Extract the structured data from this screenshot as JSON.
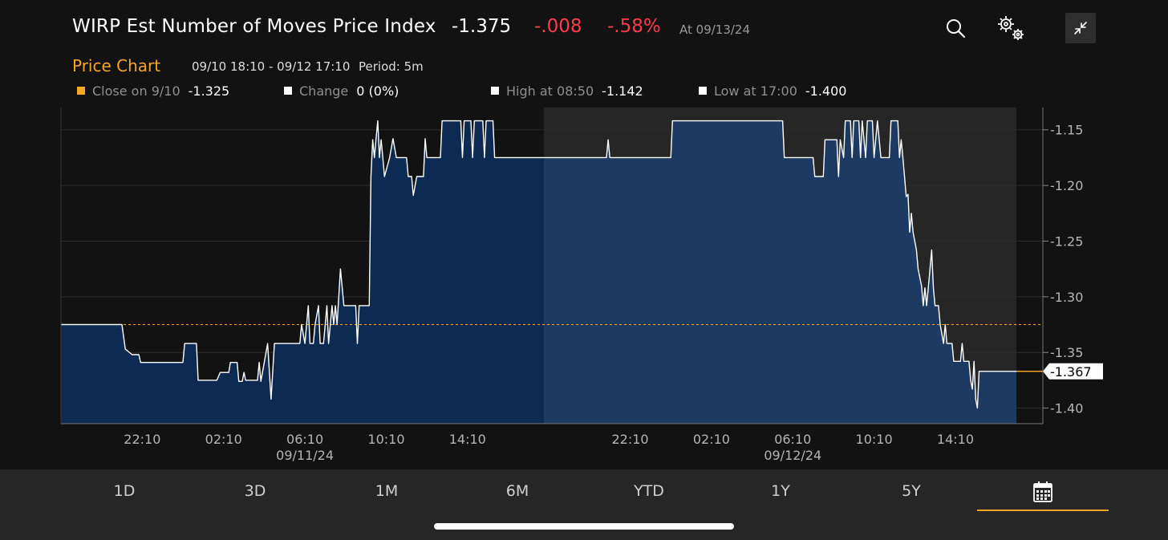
{
  "header": {
    "title": "WIRP Est Number of Moves Price Index",
    "price": "-1.375",
    "change": "-.008",
    "change_pct": "-.58%",
    "as_of": "At 09/13/24",
    "icons": [
      "search-icon",
      "settings-gears-icon",
      "collapse-icon"
    ]
  },
  "subheader": {
    "title": "Price Chart",
    "range": "09/10 18:10 - 09/12 17:10",
    "period": "Period: 5m"
  },
  "legend": [
    {
      "label": "Close on 9/10",
      "value": "-1.325",
      "color": "#f5a623"
    },
    {
      "label": "Change",
      "value": "0 (0%)",
      "color": "#ffffff"
    },
    {
      "label": "High at 08:50",
      "value": "-1.142",
      "color": "#ffffff"
    },
    {
      "label": "Low at 17:00",
      "value": "-1.400",
      "color": "#ffffff"
    }
  ],
  "chart_data": {
    "type": "area",
    "x_unit": "2024-09-10T18:10 .. 2024-09-12T17:10, 5-minute bars",
    "x_ticks": [
      {
        "t": "2024-09-10T22:10",
        "label": "22:10",
        "date": ""
      },
      {
        "t": "2024-09-11T02:10",
        "label": "02:10",
        "date": ""
      },
      {
        "t": "2024-09-11T06:10",
        "label": "06:10",
        "date": "09/11/24"
      },
      {
        "t": "2024-09-11T10:10",
        "label": "10:10",
        "date": ""
      },
      {
        "t": "2024-09-11T14:10",
        "label": "14:10",
        "date": ""
      },
      {
        "t": "2024-09-11T22:10",
        "label": "22:10",
        "date": ""
      },
      {
        "t": "2024-09-12T02:10",
        "label": "02:10",
        "date": ""
      },
      {
        "t": "2024-09-12T06:10",
        "label": "06:10",
        "date": "09/12/24"
      },
      {
        "t": "2024-09-12T10:10",
        "label": "10:10",
        "date": ""
      },
      {
        "t": "2024-09-12T14:10",
        "label": "14:10",
        "date": ""
      }
    ],
    "y_ticks": [
      "-1.15",
      "-1.20",
      "-1.25",
      "-1.30",
      "-1.35",
      "-1.40"
    ],
    "ylim": [
      -1.414,
      -1.13
    ],
    "xlim": [
      "2024-09-10T18:10",
      "2024-09-12T17:10"
    ],
    "grid": true,
    "reference_line": {
      "value": -1.325,
      "color": "#f5a623"
    },
    "last_value": {
      "label": "-1.367",
      "value": -1.367
    },
    "highlight_range": [
      "2024-09-11T17:55",
      "2024-09-12T17:10"
    ],
    "colors": {
      "line": "#ffffff",
      "fill": "#0d2a52",
      "fill_highlight": "#1c3a62",
      "highlight_band": "#262626"
    },
    "series": [
      {
        "points": [
          [
            "2024-09-10T18:10",
            -1.325
          ],
          [
            "2024-09-10T21:10",
            -1.325
          ],
          [
            "2024-09-10T21:20",
            -1.347
          ],
          [
            "2024-09-10T21:40",
            -1.352
          ],
          [
            "2024-09-10T22:00",
            -1.352
          ],
          [
            "2024-09-10T22:05",
            -1.359
          ],
          [
            "2024-09-11T00:10",
            -1.359
          ],
          [
            "2024-09-11T00:15",
            -1.342
          ],
          [
            "2024-09-11T00:50",
            -1.342
          ],
          [
            "2024-09-11T00:55",
            -1.375
          ],
          [
            "2024-09-11T01:50",
            -1.375
          ],
          [
            "2024-09-11T02:00",
            -1.368
          ],
          [
            "2024-09-11T02:25",
            -1.368
          ],
          [
            "2024-09-11T02:30",
            -1.359
          ],
          [
            "2024-09-11T02:50",
            -1.359
          ],
          [
            "2024-09-11T02:55",
            -1.376
          ],
          [
            "2024-09-11T03:05",
            -1.376
          ],
          [
            "2024-09-11T03:10",
            -1.368
          ],
          [
            "2024-09-11T03:15",
            -1.375
          ],
          [
            "2024-09-11T03:50",
            -1.375
          ],
          [
            "2024-09-11T03:55",
            -1.359
          ],
          [
            "2024-09-11T04:00",
            -1.376
          ],
          [
            "2024-09-11T04:10",
            -1.359
          ],
          [
            "2024-09-11T04:20",
            -1.342
          ],
          [
            "2024-09-11T04:25",
            -1.366
          ],
          [
            "2024-09-11T04:30",
            -1.392
          ],
          [
            "2024-09-11T04:40",
            -1.342
          ],
          [
            "2024-09-11T05:55",
            -1.342
          ],
          [
            "2024-09-11T06:00",
            -1.325
          ],
          [
            "2024-09-11T06:10",
            -1.342
          ],
          [
            "2024-09-11T06:20",
            -1.308
          ],
          [
            "2024-09-11T06:25",
            -1.342
          ],
          [
            "2024-09-11T06:35",
            -1.342
          ],
          [
            "2024-09-11T06:40",
            -1.325
          ],
          [
            "2024-09-11T06:50",
            -1.308
          ],
          [
            "2024-09-11T06:55",
            -1.342
          ],
          [
            "2024-09-11T07:05",
            -1.342
          ],
          [
            "2024-09-11T07:10",
            -1.325
          ],
          [
            "2024-09-11T07:15",
            -1.308
          ],
          [
            "2024-09-11T07:20",
            -1.342
          ],
          [
            "2024-09-11T07:30",
            -1.308
          ],
          [
            "2024-09-11T07:35",
            -1.325
          ],
          [
            "2024-09-11T07:40",
            -1.308
          ],
          [
            "2024-09-11T07:45",
            -1.325
          ],
          [
            "2024-09-11T07:55",
            -1.275
          ],
          [
            "2024-09-11T08:05",
            -1.308
          ],
          [
            "2024-09-11T08:40",
            -1.308
          ],
          [
            "2024-09-11T08:45",
            -1.342
          ],
          [
            "2024-09-11T08:50",
            -1.308
          ],
          [
            "2024-09-11T09:20",
            -1.308
          ],
          [
            "2024-09-11T09:25",
            -1.192
          ],
          [
            "2024-09-11T09:30",
            -1.159
          ],
          [
            "2024-09-11T09:35",
            -1.175
          ],
          [
            "2024-09-11T09:40",
            -1.158
          ],
          [
            "2024-09-11T09:45",
            -1.142
          ],
          [
            "2024-09-11T09:50",
            -1.175
          ],
          [
            "2024-09-11T09:55",
            -1.159
          ],
          [
            "2024-09-11T10:00",
            -1.175
          ],
          [
            "2024-09-11T10:05",
            -1.192
          ],
          [
            "2024-09-11T10:20",
            -1.175
          ],
          [
            "2024-09-11T10:30",
            -1.158
          ],
          [
            "2024-09-11T10:40",
            -1.175
          ],
          [
            "2024-09-11T11:10",
            -1.175
          ],
          [
            "2024-09-11T11:15",
            -1.192
          ],
          [
            "2024-09-11T11:25",
            -1.192
          ],
          [
            "2024-09-11T11:30",
            -1.209
          ],
          [
            "2024-09-11T11:40",
            -1.192
          ],
          [
            "2024-09-11T12:00",
            -1.192
          ],
          [
            "2024-09-11T12:05",
            -1.158
          ],
          [
            "2024-09-11T12:10",
            -1.175
          ],
          [
            "2024-09-11T12:50",
            -1.175
          ],
          [
            "2024-09-11T12:55",
            -1.142
          ],
          [
            "2024-09-11T13:50",
            -1.142
          ],
          [
            "2024-09-11T13:55",
            -1.175
          ],
          [
            "2024-09-11T14:00",
            -1.142
          ],
          [
            "2024-09-11T14:20",
            -1.142
          ],
          [
            "2024-09-11T14:25",
            -1.175
          ],
          [
            "2024-09-11T14:30",
            -1.142
          ],
          [
            "2024-09-11T14:55",
            -1.142
          ],
          [
            "2024-09-11T15:00",
            -1.175
          ],
          [
            "2024-09-11T15:05",
            -1.142
          ],
          [
            "2024-09-11T15:25",
            -1.142
          ],
          [
            "2024-09-11T15:30",
            -1.175
          ],
          [
            "2024-09-11T17:55",
            -1.175
          ],
          [
            "2024-09-11T21:00",
            -1.175
          ],
          [
            "2024-09-11T21:05",
            -1.159
          ],
          [
            "2024-09-11T21:10",
            -1.175
          ],
          [
            "2024-09-12T00:10",
            -1.175
          ],
          [
            "2024-09-12T00:15",
            -1.142
          ],
          [
            "2024-09-12T05:40",
            -1.142
          ],
          [
            "2024-09-12T05:45",
            -1.175
          ],
          [
            "2024-09-12T07:10",
            -1.175
          ],
          [
            "2024-09-12T07:15",
            -1.192
          ],
          [
            "2024-09-12T07:40",
            -1.192
          ],
          [
            "2024-09-12T07:45",
            -1.159
          ],
          [
            "2024-09-12T08:20",
            -1.159
          ],
          [
            "2024-09-12T08:25",
            -1.192
          ],
          [
            "2024-09-12T08:30",
            -1.159
          ],
          [
            "2024-09-12T08:40",
            -1.175
          ],
          [
            "2024-09-12T08:45",
            -1.142
          ],
          [
            "2024-09-12T09:00",
            -1.142
          ],
          [
            "2024-09-12T09:05",
            -1.175
          ],
          [
            "2024-09-12T09:10",
            -1.142
          ],
          [
            "2024-09-12T09:25",
            -1.142
          ],
          [
            "2024-09-12T09:30",
            -1.175
          ],
          [
            "2024-09-12T09:35",
            -1.142
          ],
          [
            "2024-09-12T09:45",
            -1.175
          ],
          [
            "2024-09-12T09:50",
            -1.142
          ],
          [
            "2024-09-12T10:05",
            -1.142
          ],
          [
            "2024-09-12T10:10",
            -1.175
          ],
          [
            "2024-09-12T10:20",
            -1.142
          ],
          [
            "2024-09-12T10:30",
            -1.175
          ],
          [
            "2024-09-12T10:55",
            -1.175
          ],
          [
            "2024-09-12T11:00",
            -1.142
          ],
          [
            "2024-09-12T11:20",
            -1.142
          ],
          [
            "2024-09-12T11:25",
            -1.175
          ],
          [
            "2024-09-12T11:30",
            -1.159
          ],
          [
            "2024-09-12T11:35",
            -1.175
          ],
          [
            "2024-09-12T11:45",
            -1.21
          ],
          [
            "2024-09-12T11:50",
            -1.208
          ],
          [
            "2024-09-12T11:55",
            -1.242
          ],
          [
            "2024-09-12T12:00",
            -1.225
          ],
          [
            "2024-09-12T12:05",
            -1.242
          ],
          [
            "2024-09-12T12:15",
            -1.258
          ],
          [
            "2024-09-12T12:20",
            -1.275
          ],
          [
            "2024-09-12T12:30",
            -1.29
          ],
          [
            "2024-09-12T12:35",
            -1.308
          ],
          [
            "2024-09-12T12:40",
            -1.292
          ],
          [
            "2024-09-12T12:45",
            -1.308
          ],
          [
            "2024-09-12T12:50",
            -1.292
          ],
          [
            "2024-09-12T12:55",
            -1.275
          ],
          [
            "2024-09-12T13:00",
            -1.258
          ],
          [
            "2024-09-12T13:05",
            -1.292
          ],
          [
            "2024-09-12T13:10",
            -1.308
          ],
          [
            "2024-09-12T13:20",
            -1.308
          ],
          [
            "2024-09-12T13:25",
            -1.325
          ],
          [
            "2024-09-12T13:35",
            -1.342
          ],
          [
            "2024-09-12T13:40",
            -1.325
          ],
          [
            "2024-09-12T13:45",
            -1.342
          ],
          [
            "2024-09-12T14:00",
            -1.342
          ],
          [
            "2024-09-12T14:05",
            -1.358
          ],
          [
            "2024-09-12T14:25",
            -1.358
          ],
          [
            "2024-09-12T14:30",
            -1.342
          ],
          [
            "2024-09-12T14:35",
            -1.358
          ],
          [
            "2024-09-12T14:50",
            -1.358
          ],
          [
            "2024-09-12T14:55",
            -1.375
          ],
          [
            "2024-09-12T15:00",
            -1.383
          ],
          [
            "2024-09-12T15:05",
            -1.358
          ],
          [
            "2024-09-12T15:10",
            -1.392
          ],
          [
            "2024-09-12T15:15",
            -1.4
          ],
          [
            "2024-09-12T15:20",
            -1.367
          ],
          [
            "2024-09-12T17:10",
            -1.367
          ]
        ]
      }
    ]
  },
  "tabs": [
    {
      "label": "1D"
    },
    {
      "label": "3D"
    },
    {
      "label": "1M"
    },
    {
      "label": "6M"
    },
    {
      "label": "YTD"
    },
    {
      "label": "1Y"
    },
    {
      "label": "5Y"
    }
  ],
  "selected_tab": "calendar-icon"
}
